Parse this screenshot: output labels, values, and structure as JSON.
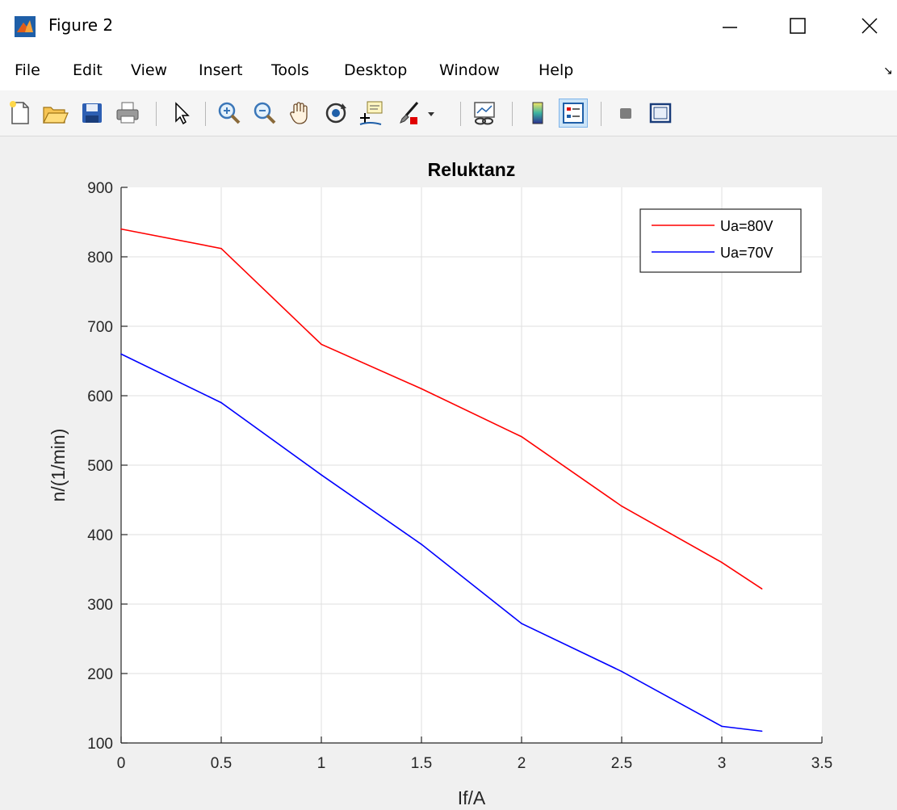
{
  "window": {
    "title": "Figure 2",
    "icon": "matlab-icon",
    "controls": [
      "minimize-icon",
      "maximize-icon",
      "close-icon"
    ]
  },
  "menu": {
    "items": [
      "File",
      "Edit",
      "View",
      "Insert",
      "Tools",
      "Desktop",
      "Window",
      "Help"
    ]
  },
  "toolbar": {
    "tools": [
      "new-figure-icon",
      "open-file-icon",
      "save-icon",
      "print-icon",
      "edit-plot-icon",
      "zoom-in-icon",
      "zoom-out-icon",
      "pan-icon",
      "rotate-3d-icon",
      "data-cursor-icon",
      "brush-icon",
      "brush-dropdown-icon",
      "link-plot-icon",
      "insert-colorbar-icon",
      "insert-legend-icon",
      "hide-plot-tools-icon",
      "show-plot-tools-icon"
    ],
    "active": [
      "insert-legend-icon"
    ]
  },
  "chart_data": {
    "type": "line",
    "title": "Reluktanz",
    "xlabel": "If/A",
    "ylabel": "n/(1/min)",
    "xlim": [
      0,
      3.5
    ],
    "ylim": [
      100,
      900
    ],
    "xticks": [
      "0",
      "0.5",
      "1",
      "1.5",
      "2",
      "2.5",
      "3",
      "3.5"
    ],
    "xtick_values": [
      0,
      0.5,
      1,
      1.5,
      2,
      2.5,
      3,
      3.5
    ],
    "yticks": [
      "100",
      "200",
      "300",
      "400",
      "500",
      "600",
      "700",
      "800",
      "900"
    ],
    "ytick_values": [
      100,
      200,
      300,
      400,
      500,
      600,
      700,
      800,
      900
    ],
    "grid": true,
    "legend_position": "top-right",
    "series": [
      {
        "name": "Ua=80V",
        "color": "#ff0000",
        "x": [
          0,
          0.5,
          1,
          1.5,
          2,
          2.5,
          3,
          3.2
        ],
        "y": [
          840,
          812,
          674,
          610,
          541,
          441,
          360,
          322
        ]
      },
      {
        "name": "Ua=70V",
        "color": "#0000ff",
        "x": [
          0,
          0.5,
          1,
          1.5,
          2,
          2.5,
          3,
          3.2
        ],
        "y": [
          660,
          590,
          486,
          386,
          272,
          203,
          124,
          117
        ]
      }
    ]
  }
}
